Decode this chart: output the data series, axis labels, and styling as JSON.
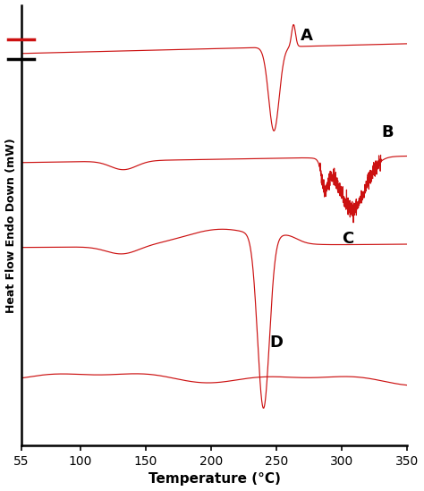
{
  "title": "",
  "xlabel": "Temperature (°C)",
  "ylabel": "Heat Flow Endo Down (mW)",
  "xlim": [
    55,
    350
  ],
  "ylim": [
    -1.0,
    1.0
  ],
  "xticks": [
    55,
    100,
    150,
    200,
    250,
    300,
    350
  ],
  "label_A": "A",
  "label_B": "B",
  "label_C": "C",
  "label_D": "D",
  "bg_color": "#ffffff",
  "curve_color": "#cc1111"
}
